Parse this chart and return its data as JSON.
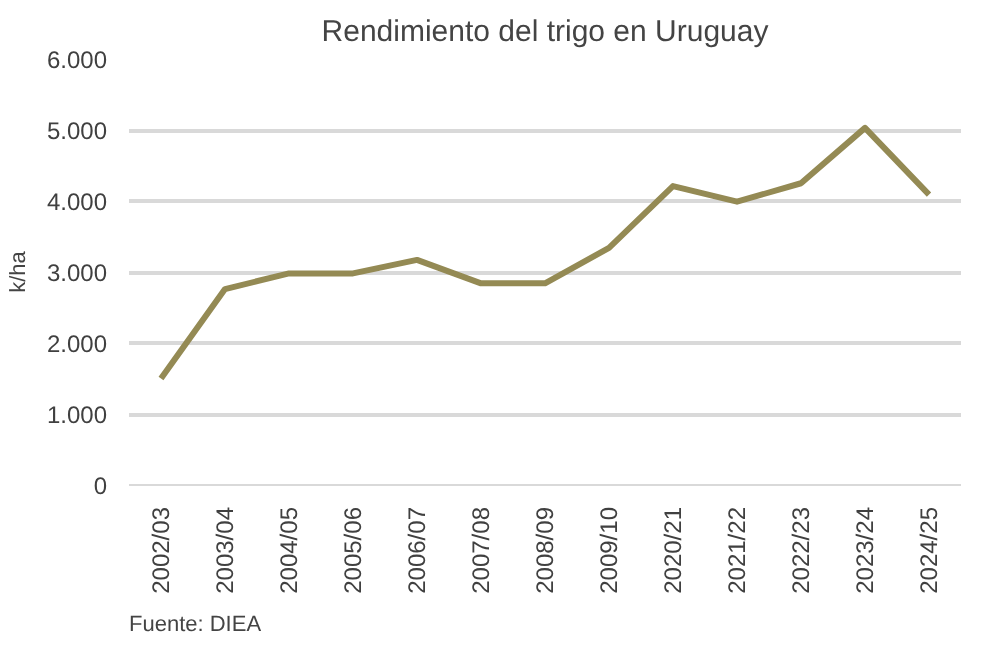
{
  "chart_data": {
    "type": "line",
    "title": "Rendimiento del trigo en Uruguay",
    "ylabel": "k/ha",
    "categories": [
      "2002/03",
      "2003/04",
      "2004/05",
      "2005/06",
      "2006/07",
      "2007/08",
      "2008/09",
      "2009/10",
      "2020/21",
      "2021/22",
      "2022/23",
      "2023/24",
      "2024/25"
    ],
    "series": [
      {
        "color": "#948a54",
        "values": [
          1500,
          2760,
          2980,
          2980,
          3170,
          2840,
          2840,
          3340,
          4210,
          3990,
          4250,
          5030,
          4090
        ]
      }
    ],
    "ylim": [
      0,
      6000
    ],
    "yticks": [
      0,
      {
        "value": 1000,
        "label": "1.000"
      },
      {
        "value": 2000,
        "label": "2.000"
      },
      {
        "value": 3000,
        "label": "3.000"
      },
      {
        "value": 4000,
        "label": "4.000"
      },
      {
        "value": 5000,
        "label": "5.000"
      },
      {
        "value": 6000,
        "label": "6.000"
      }
    ],
    "grid": "y",
    "marker": "none",
    "line_style": "solid",
    "annotations": [
      "Fuente: DIEA"
    ]
  }
}
